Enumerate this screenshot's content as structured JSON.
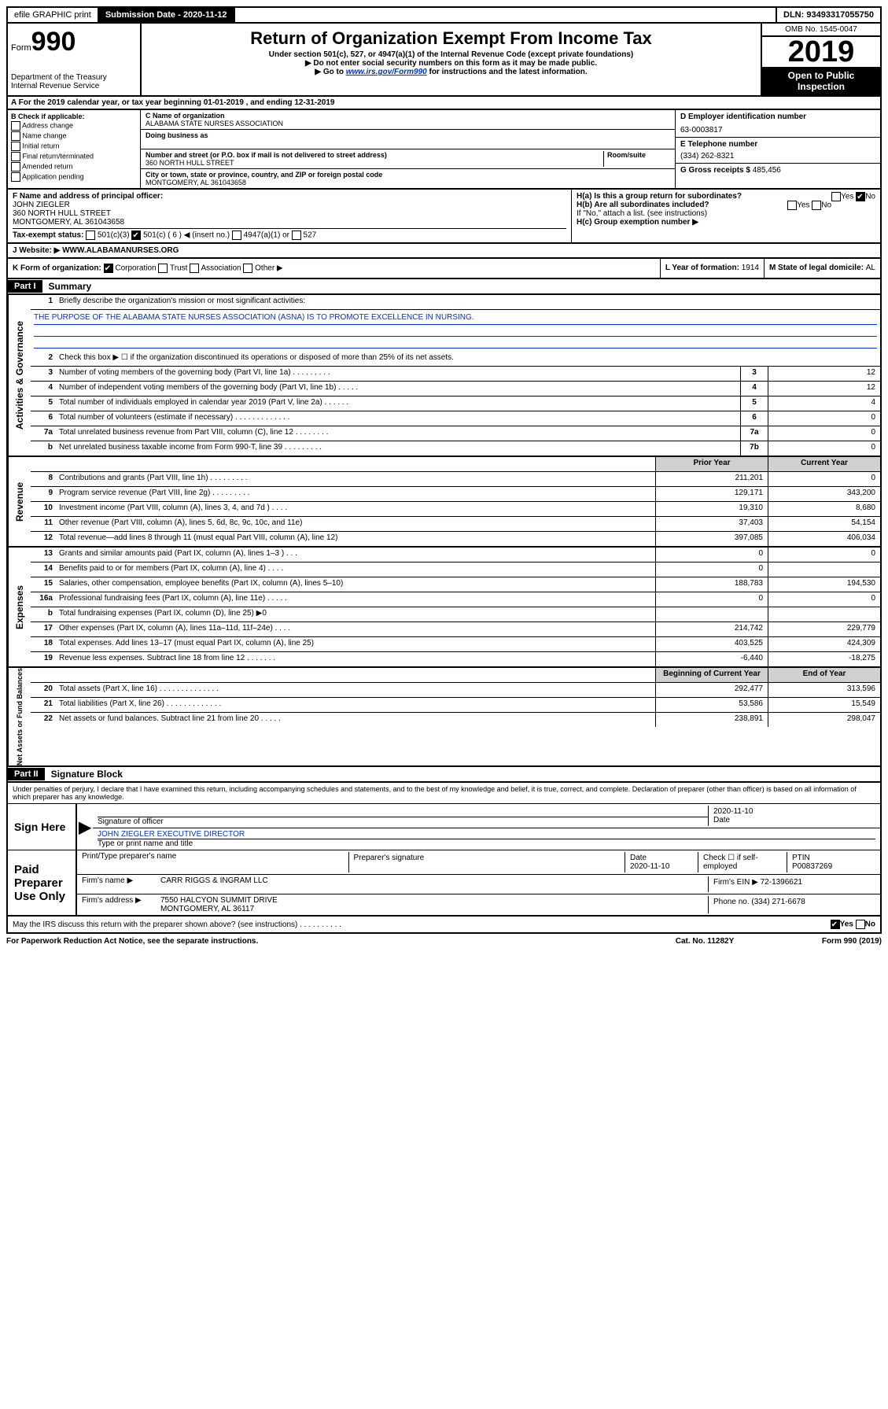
{
  "topbar": {
    "efile": "efile GRAPHIC print",
    "sub_label": "Submission Date - ",
    "sub_date": "2020-11-12",
    "dln_label": "DLN: ",
    "dln": "93493317055750"
  },
  "header": {
    "form_prefix": "Form",
    "form_num": "990",
    "dept1": "Department of the Treasury",
    "dept2": "Internal Revenue Service",
    "title": "Return of Organization Exempt From Income Tax",
    "sub1": "Under section 501(c), 527, or 4947(a)(1) of the Internal Revenue Code (except private foundations)",
    "sub2": "▶ Do not enter social security numbers on this form as it may be made public.",
    "sub3a": "▶ Go to ",
    "sub3_link": "www.irs.gov/Form990",
    "sub3b": " for instructions and the latest information.",
    "omb": "OMB No. 1545-0047",
    "year": "2019",
    "open": "Open to Public Inspection"
  },
  "line_a": "A For the 2019 calendar year, or tax year beginning 01-01-2019    , and ending 12-31-2019",
  "col_b": {
    "title": "B Check if applicable:",
    "opts": [
      "Address change",
      "Name change",
      "Initial return",
      "Final return/terminated",
      "Amended return",
      "Application pending"
    ]
  },
  "col_c": {
    "name_label": "C Name of organization",
    "name": "ALABAMA STATE NURSES ASSOCIATION",
    "dba_label": "Doing business as",
    "addr_label": "Number and street (or P.O. box if mail is not delivered to street address)",
    "room_label": "Room/suite",
    "addr": "360 NORTH HULL STREET",
    "city_label": "City or town, state or province, country, and ZIP or foreign postal code",
    "city": "MONTGOMERY, AL  361043658"
  },
  "col_de": {
    "d_label": "D Employer identification number",
    "ein": "63-0003817",
    "e_label": "E Telephone number",
    "phone": "(334) 262-8321",
    "g_label": "G Gross receipts $ ",
    "g_val": "485,456"
  },
  "row_f": {
    "label": "F Name and address of principal officer:",
    "name": "JOHN ZIEGLER",
    "addr1": "360 NORTH HULL STREET",
    "addr2": "MONTGOMERY, AL  361043658"
  },
  "row_h": {
    "a": "H(a)  Is this a group return for subordinates?",
    "b": "H(b)  Are all subordinates included?",
    "note": "If \"No,\" attach a list. (see instructions)",
    "c": "H(c)  Group exemption number ▶",
    "yes": "Yes",
    "no": "No"
  },
  "row_i": {
    "label": "Tax-exempt status:",
    "o1": "501(c)(3)",
    "o2": "501(c) ( 6 ) ◀ (insert no.)",
    "o3": "4947(a)(1) or",
    "o4": "527"
  },
  "row_j": {
    "label": "J  Website: ▶",
    "val": "WWW.ALABAMANURSES.ORG"
  },
  "row_k": {
    "label": "K Form of organization:",
    "o1": "Corporation",
    "o2": "Trust",
    "o3": "Association",
    "o4": "Other ▶",
    "l_label": "L Year of formation: ",
    "l_val": "1914",
    "m_label": "M State of legal domicile: ",
    "m_val": "AL"
  },
  "part1": {
    "tag": "Part I",
    "title": "Summary"
  },
  "summary": {
    "q1": "Briefly describe the organization's mission or most significant activities:",
    "mission": "THE PURPOSE OF THE ALABAMA STATE NURSES ASSOCIATION (ASNA) IS TO PROMOTE EXCELLENCE IN NURSING.",
    "q2": "Check this box ▶ ☐  if the organization discontinued its operations or disposed of more than 25% of its net assets.",
    "rows_gov": [
      {
        "n": "3",
        "d": "Number of voting members of the governing body (Part VI, line 1a)  .   .   .   .   .   .   .   .   .",
        "b": "3",
        "v": "12"
      },
      {
        "n": "4",
        "d": "Number of independent voting members of the governing body (Part VI, line 1b)  .   .   .   .   .",
        "b": "4",
        "v": "12"
      },
      {
        "n": "5",
        "d": "Total number of individuals employed in calendar year 2019 (Part V, line 2a)  .   .   .   .   .   .",
        "b": "5",
        "v": "4"
      },
      {
        "n": "6",
        "d": "Total number of volunteers (estimate if necessary)  .   .   .   .   .   .   .   .   .   .   .   .   .",
        "b": "6",
        "v": "0"
      },
      {
        "n": "7a",
        "d": "Total unrelated business revenue from Part VIII, column (C), line 12  .   .   .   .   .   .   .   .",
        "b": "7a",
        "v": "0"
      },
      {
        "n": "b",
        "d": "Net unrelated business taxable income from Form 990-T, line 39  .   .   .   .   .   .   .   .   .",
        "b": "7b",
        "v": "0"
      }
    ],
    "hdr_prior": "Prior Year",
    "hdr_curr": "Current Year",
    "rows_rev": [
      {
        "n": "8",
        "d": "Contributions and grants (Part VIII, line 1h)  .   .   .   .   .   .   .   .   .",
        "p": "211,201",
        "c": "0"
      },
      {
        "n": "9",
        "d": "Program service revenue (Part VIII, line 2g)  .   .   .   .   .   .   .   .   .",
        "p": "129,171",
        "c": "343,200"
      },
      {
        "n": "10",
        "d": "Investment income (Part VIII, column (A), lines 3, 4, and 7d )  .   .   .   .",
        "p": "19,310",
        "c": "8,680"
      },
      {
        "n": "11",
        "d": "Other revenue (Part VIII, column (A), lines 5, 6d, 8c, 9c, 10c, and 11e)",
        "p": "37,403",
        "c": "54,154"
      },
      {
        "n": "12",
        "d": "Total revenue—add lines 8 through 11 (must equal Part VIII, column (A), line 12)",
        "p": "397,085",
        "c": "406,034"
      }
    ],
    "rows_exp": [
      {
        "n": "13",
        "d": "Grants and similar amounts paid (Part IX, column (A), lines 1–3 )  .   .   .",
        "p": "0",
        "c": "0"
      },
      {
        "n": "14",
        "d": "Benefits paid to or for members (Part IX, column (A), line 4)  .   .   .   .",
        "p": "0",
        "c": ""
      },
      {
        "n": "15",
        "d": "Salaries, other compensation, employee benefits (Part IX, column (A), lines 5–10)",
        "p": "188,783",
        "c": "194,530"
      },
      {
        "n": "16a",
        "d": "Professional fundraising fees (Part IX, column (A), line 11e)  .   .   .   .   .",
        "p": "0",
        "c": "0"
      },
      {
        "n": "b",
        "d": "Total fundraising expenses (Part IX, column (D), line 25) ▶0",
        "p": "",
        "c": ""
      },
      {
        "n": "17",
        "d": "Other expenses (Part IX, column (A), lines 11a–11d, 11f–24e)  .   .   .   .",
        "p": "214,742",
        "c": "229,779"
      },
      {
        "n": "18",
        "d": "Total expenses. Add lines 13–17 (must equal Part IX, column (A), line 25)",
        "p": "403,525",
        "c": "424,309"
      },
      {
        "n": "19",
        "d": "Revenue less expenses. Subtract line 18 from line 12  .   .   .   .   .   .   .",
        "p": "-6,440",
        "c": "-18,275"
      }
    ],
    "hdr_beg": "Beginning of Current Year",
    "hdr_end": "End of Year",
    "rows_net": [
      {
        "n": "20",
        "d": "Total assets (Part X, line 16)  .   .   .   .   .   .   .   .   .   .   .   .   .   .",
        "p": "292,477",
        "c": "313,596"
      },
      {
        "n": "21",
        "d": "Total liabilities (Part X, line 26)  .   .   .   .   .   .   .   .   .   .   .   .   .",
        "p": "53,586",
        "c": "15,549"
      },
      {
        "n": "22",
        "d": "Net assets or fund balances. Subtract line 21 from line 20  .    .   .   .   .",
        "p": "238,891",
        "c": "298,047"
      }
    ]
  },
  "sidelabels": {
    "gov": "Activities & Governance",
    "rev": "Revenue",
    "exp": "Expenses",
    "net": "Net Assets or Fund Balances"
  },
  "part2": {
    "tag": "Part II",
    "title": "Signature Block"
  },
  "sig": {
    "intro": "Under penalties of perjury, I declare that I have examined this return, including accompanying schedules and statements, and to the best of my knowledge and belief, it is true, correct, and complete. Declaration of preparer (other than officer) is based on all information of which preparer has any knowledge.",
    "sign_here": "Sign Here",
    "sig_officer": "Signature of officer",
    "date1": "2020-11-10",
    "date_lbl": "Date",
    "officer": "JOHN ZIEGLER  EXECUTIVE DIRECTOR",
    "officer_lbl": "Type or print name and title",
    "paid": "Paid Preparer Use Only",
    "prep_name_lbl": "Print/Type preparer's name",
    "prep_sig_lbl": "Preparer's signature",
    "date2_lbl": "Date",
    "date2": "2020-11-10",
    "check_lbl": "Check ☐ if self-employed",
    "ptin_lbl": "PTIN",
    "ptin": "P00837269",
    "firm_name_lbl": "Firm's name    ▶",
    "firm_name": "CARR RIGGS & INGRAM LLC",
    "firm_ein_lbl": "Firm's EIN ▶ ",
    "firm_ein": "72-1396621",
    "firm_addr_lbl": "Firm's address ▶",
    "firm_addr1": "7550 HALCYON SUMMIT DRIVE",
    "firm_addr2": "MONTGOMERY, AL  36117",
    "phone_lbl": "Phone no. ",
    "phone": "(334) 271-6678"
  },
  "footer": {
    "q": "May the IRS discuss this return with the preparer shown above? (see instructions)   .    .   .   .   .   .   .   .   .   .",
    "yes": "Yes",
    "no": "No",
    "pra": "For Paperwork Reduction Act Notice, see the separate instructions.",
    "cat": "Cat. No. 11282Y",
    "form": "Form 990 (2019)"
  }
}
